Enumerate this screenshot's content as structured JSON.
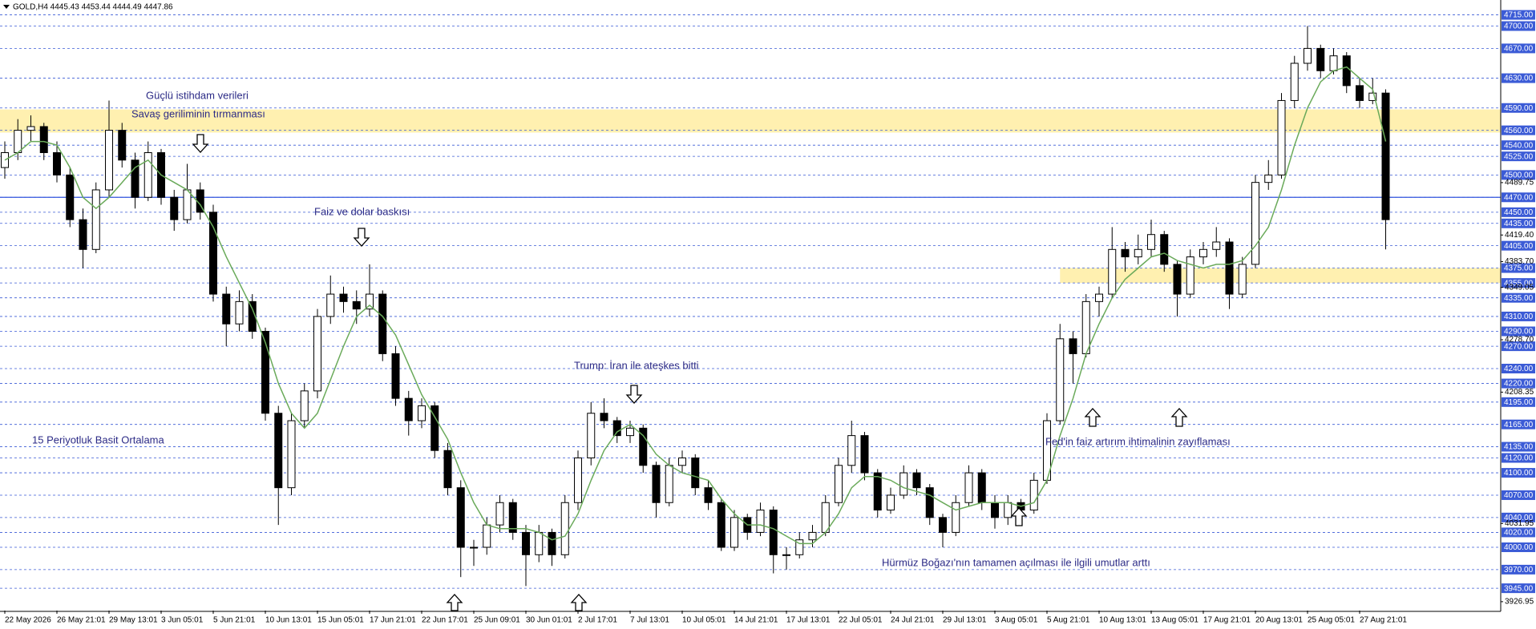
{
  "header": "GOLD,H4  4445.43 4453.44 4444.49 4447.86",
  "chart_data": {
    "type": "candlestick",
    "categories": [
      "22 May 2026",
      null,
      null,
      null,
      "26 May 21:01",
      null,
      null,
      null,
      "29 May 13:01",
      null,
      null,
      null,
      "3 Jun 05:01",
      null,
      null,
      null,
      "5 Jun 21:01",
      null,
      null,
      null,
      "10 Jun 13:01",
      null,
      null,
      null,
      "15 Jun 05:01",
      null,
      null,
      null,
      "17 Jun 21:01",
      null,
      null,
      null,
      "22 Jun 17:01",
      null,
      null,
      null,
      "25 Jun 09:01",
      null,
      null,
      null,
      "30 Jun 01:01",
      null,
      null,
      null,
      "2 Jul 17:01",
      null,
      null,
      null,
      "7 Jul 13:01",
      null,
      null,
      null,
      "10 Jul 05:01",
      null,
      null,
      null,
      "14 Jul 21:01",
      null,
      null,
      null,
      "17 Jul 13:01",
      null,
      null,
      null,
      "22 Jul 05:01",
      null,
      null,
      null,
      "24 Jul 21:01",
      null,
      null,
      null,
      "29 Jul 13:01",
      null,
      null,
      null,
      "3 Aug 05:01",
      null,
      null,
      null,
      "5 Aug 21:01",
      null,
      null,
      null,
      "10 Aug 13:01",
      null,
      null,
      null,
      "13 Aug 05:01",
      null,
      null,
      null,
      "17 Aug 21:01",
      null,
      null,
      null,
      "20 Aug 13:01",
      null,
      null,
      null,
      "25 Aug 05:01",
      null,
      null,
      null,
      "27 Aug 21:01",
      null,
      null
    ],
    "open": [
      4510,
      4530,
      4560,
      4565,
      4530,
      4500,
      4440,
      4400,
      4480,
      4560,
      4520,
      4470,
      4530,
      4470,
      4440,
      4480,
      4450,
      4340,
      4300,
      4330,
      4290,
      4180,
      4080,
      4170,
      4210,
      4310,
      4340,
      4330,
      4320,
      4340,
      4260,
      4200,
      4170,
      4190,
      4130,
      4080,
      4000,
      4000,
      4030,
      4060,
      4020,
      3990,
      4020,
      3990,
      4060,
      4120,
      4180,
      4170,
      4150,
      4160,
      4110,
      4060,
      4110,
      4120,
      4080,
      4060,
      4000,
      4040,
      4020,
      4050,
      3990,
      3990,
      4010,
      4020,
      4060,
      4110,
      4150,
      4100,
      4050,
      4070,
      4100,
      4080,
      4040,
      4020,
      4060,
      4100,
      4060,
      4040,
      4060,
      4050,
      4090,
      4170,
      4280,
      4260,
      4330,
      4340,
      4400,
      4390,
      4400,
      4420,
      4380,
      4340,
      4390,
      4400,
      4410,
      4340,
      4380,
      4490,
      4500,
      4600,
      4650,
      4670,
      4640,
      4660,
      4620,
      4600,
      4610
    ],
    "high": [
      4545,
      4575,
      4580,
      4570,
      4545,
      4510,
      4455,
      4490,
      4600,
      4570,
      4530,
      4545,
      4535,
      4480,
      4515,
      4490,
      4460,
      4350,
      4345,
      4340,
      4295,
      4190,
      4180,
      4220,
      4320,
      4365,
      4350,
      4345,
      4380,
      4345,
      4270,
      4210,
      4200,
      4195,
      4140,
      4090,
      4010,
      4040,
      4070,
      4065,
      4030,
      4030,
      4025,
      4070,
      4130,
      4195,
      4200,
      4175,
      4170,
      4165,
      4115,
      4120,
      4130,
      4125,
      4090,
      4065,
      4050,
      4045,
      4060,
      4055,
      4000,
      4020,
      4030,
      4070,
      4120,
      4170,
      4155,
      4105,
      4080,
      4110,
      4105,
      4085,
      4045,
      4070,
      4110,
      4105,
      4070,
      4070,
      4065,
      4100,
      4180,
      4300,
      4290,
      4340,
      4350,
      4430,
      4410,
      4420,
      4440,
      4425,
      4385,
      4400,
      4410,
      4430,
      4415,
      4390,
      4500,
      4520,
      4610,
      4660,
      4700,
      4675,
      4670,
      4665,
      4630,
      4630,
      4615
    ],
    "low": [
      4495,
      4520,
      4545,
      4520,
      4490,
      4430,
      4375,
      4395,
      4470,
      4510,
      4455,
      4465,
      4460,
      4425,
      4435,
      4440,
      4330,
      4270,
      4290,
      4280,
      4170,
      4030,
      4070,
      4160,
      4200,
      4300,
      4315,
      4300,
      4310,
      4250,
      4190,
      4150,
      4160,
      4120,
      4070,
      3960,
      3975,
      3990,
      4020,
      4010,
      3948,
      3980,
      3975,
      3985,
      4050,
      4110,
      4160,
      4140,
      4140,
      4100,
      4040,
      4055,
      4100,
      4070,
      4050,
      3995,
      3995,
      4010,
      4015,
      3965,
      3970,
      3985,
      4000,
      4015,
      4055,
      4100,
      4090,
      4040,
      4045,
      4065,
      4070,
      4030,
      4000,
      4015,
      4055,
      4050,
      4025,
      4030,
      4030,
      4045,
      4085,
      4165,
      4220,
      4255,
      4310,
      4335,
      4370,
      4380,
      4390,
      4370,
      4310,
      4335,
      4380,
      4390,
      4320,
      4335,
      4375,
      4480,
      4495,
      4590,
      4640,
      4630,
      4635,
      4610,
      4590,
      4595,
      4400
    ],
    "close": [
      4530,
      4560,
      4565,
      4530,
      4500,
      4440,
      4400,
      4480,
      4560,
      4520,
      4470,
      4530,
      4470,
      4440,
      4480,
      4450,
      4340,
      4300,
      4330,
      4290,
      4180,
      4080,
      4170,
      4210,
      4310,
      4340,
      4330,
      4320,
      4340,
      4260,
      4200,
      4170,
      4190,
      4130,
      4080,
      4000,
      4000,
      4030,
      4060,
      4020,
      3990,
      4020,
      3990,
      4060,
      4120,
      4180,
      4170,
      4150,
      4160,
      4110,
      4060,
      4110,
      4120,
      4080,
      4060,
      4000,
      4040,
      4020,
      4050,
      3990,
      3990,
      4010,
      4020,
      4060,
      4110,
      4150,
      4100,
      4050,
      4070,
      4100,
      4080,
      4040,
      4020,
      4060,
      4100,
      4060,
      4040,
      4060,
      4050,
      4090,
      4170,
      4280,
      4260,
      4330,
      4340,
      4400,
      4390,
      4400,
      4420,
      4380,
      4340,
      4390,
      4400,
      4410,
      4340,
      4380,
      4490,
      4500,
      4600,
      4650,
      4670,
      4640,
      4660,
      4620,
      4600,
      4610,
      4440
    ],
    "up_color": "#ffffff",
    "down_color": "#000000",
    "ma": {
      "color": "#6aaa5a",
      "values": [
        4520,
        4530,
        4545,
        4545,
        4540,
        4510,
        4470,
        4455,
        4470,
        4490,
        4510,
        4520,
        4500,
        4490,
        4480,
        4460,
        4430,
        4390,
        4355,
        4320,
        4275,
        4220,
        4180,
        4160,
        4180,
        4225,
        4270,
        4310,
        4325,
        4310,
        4285,
        4245,
        4205,
        4175,
        4145,
        4100,
        4060,
        4030,
        4025,
        4025,
        4025,
        4020,
        4010,
        4015,
        4045,
        4090,
        4130,
        4155,
        4165,
        4150,
        4125,
        4110,
        4100,
        4095,
        4090,
        4065,
        4045,
        4030,
        4030,
        4025,
        4015,
        4005,
        4005,
        4020,
        4045,
        4080,
        4095,
        4095,
        4090,
        4080,
        4075,
        4070,
        4060,
        4050,
        4055,
        4060,
        4060,
        4060,
        4055,
        4060,
        4090,
        4150,
        4200,
        4260,
        4300,
        4335,
        4360,
        4375,
        4390,
        4395,
        4385,
        4380,
        4375,
        4380,
        4380,
        4385,
        4405,
        4430,
        4480,
        4540,
        4590,
        4625,
        4640,
        4645,
        4630,
        4615,
        4545
      ]
    },
    "ylim": [
      3915,
      4735
    ],
    "yticks": [
      4489.75,
      {
        "value": 4419.4,
        "label": "4419.40"
      },
      {
        "value": 4383.7,
        "label": "4383.70"
      },
      4349.05,
      {
        "value": 4278.7,
        "label": "4278.70"
      },
      4208.35,
      4031.95,
      3926.95
    ],
    "levels": [
      {
        "value": 4715,
        "label": "4715.00"
      },
      {
        "value": 4700,
        "label": "4700.00"
      },
      {
        "value": 4670,
        "label": "4670.00"
      },
      {
        "value": 4630,
        "label": "4630.00"
      },
      {
        "value": 4590,
        "label": "4590.00"
      },
      {
        "value": 4560,
        "label": "4560.00"
      },
      {
        "value": 4540,
        "label": "4540.00"
      },
      {
        "value": 4525,
        "label": "4525.00"
      },
      {
        "value": 4500,
        "label": "4500.00"
      },
      {
        "value": 4470,
        "label": "4470.00"
      },
      {
        "value": 4450,
        "label": "4450.00"
      },
      {
        "value": 4435,
        "label": "4435.00"
      },
      {
        "value": 4405,
        "label": "4405.00"
      },
      {
        "value": 4375,
        "label": "4375.00"
      },
      {
        "value": 4355,
        "label": "4355.00"
      },
      {
        "value": 4335,
        "label": "4335.00"
      },
      {
        "value": 4310,
        "label": "4310.00"
      },
      {
        "value": 4290,
        "label": "4290.00"
      },
      {
        "value": 4270,
        "label": "4270.00"
      },
      {
        "value": 4240,
        "label": "4240.00"
      },
      {
        "value": 4220,
        "label": "4220.00"
      },
      {
        "value": 4195,
        "label": "4195.00"
      },
      {
        "value": 4165,
        "label": "4165.00"
      },
      {
        "value": 4135,
        "label": "4135.00"
      },
      {
        "value": 4120,
        "label": "4120.00"
      },
      {
        "value": 4100,
        "label": "4100.00"
      },
      {
        "value": 4070,
        "label": "4070.00"
      },
      {
        "value": 4040,
        "label": "4040.00"
      },
      {
        "value": 4020,
        "label": "4020.00"
      },
      {
        "value": 4000,
        "label": "4000.00"
      },
      {
        "value": 3970,
        "label": "3970.00"
      },
      {
        "value": 3945,
        "label": "3945.00"
      }
    ],
    "level_color": "#3b5bd6",
    "zones": [
      {
        "from": 4557,
        "to": 4588,
        "color": "#fff0b0"
      },
      {
        "from": 4355,
        "to": 4375,
        "color": "#fff0b0",
        "start_index": 81
      }
    ],
    "hline": {
      "value": 4470,
      "color": "#3355dd"
    },
    "annotations": [
      "Güçlü istihdam verileri",
      "Savaş geriliminin tırmanması",
      "Faiz ve dolar baskısı",
      "Trump: İran ile ateşkes bitti",
      "15 Periyotluk Basit Ortalama",
      "Fed'in faiz artırım ihtimalinin zayıflaması",
      "Hürmüz Boğazı'nın tamamen açılması ile ilgili umutlar arttı"
    ]
  }
}
